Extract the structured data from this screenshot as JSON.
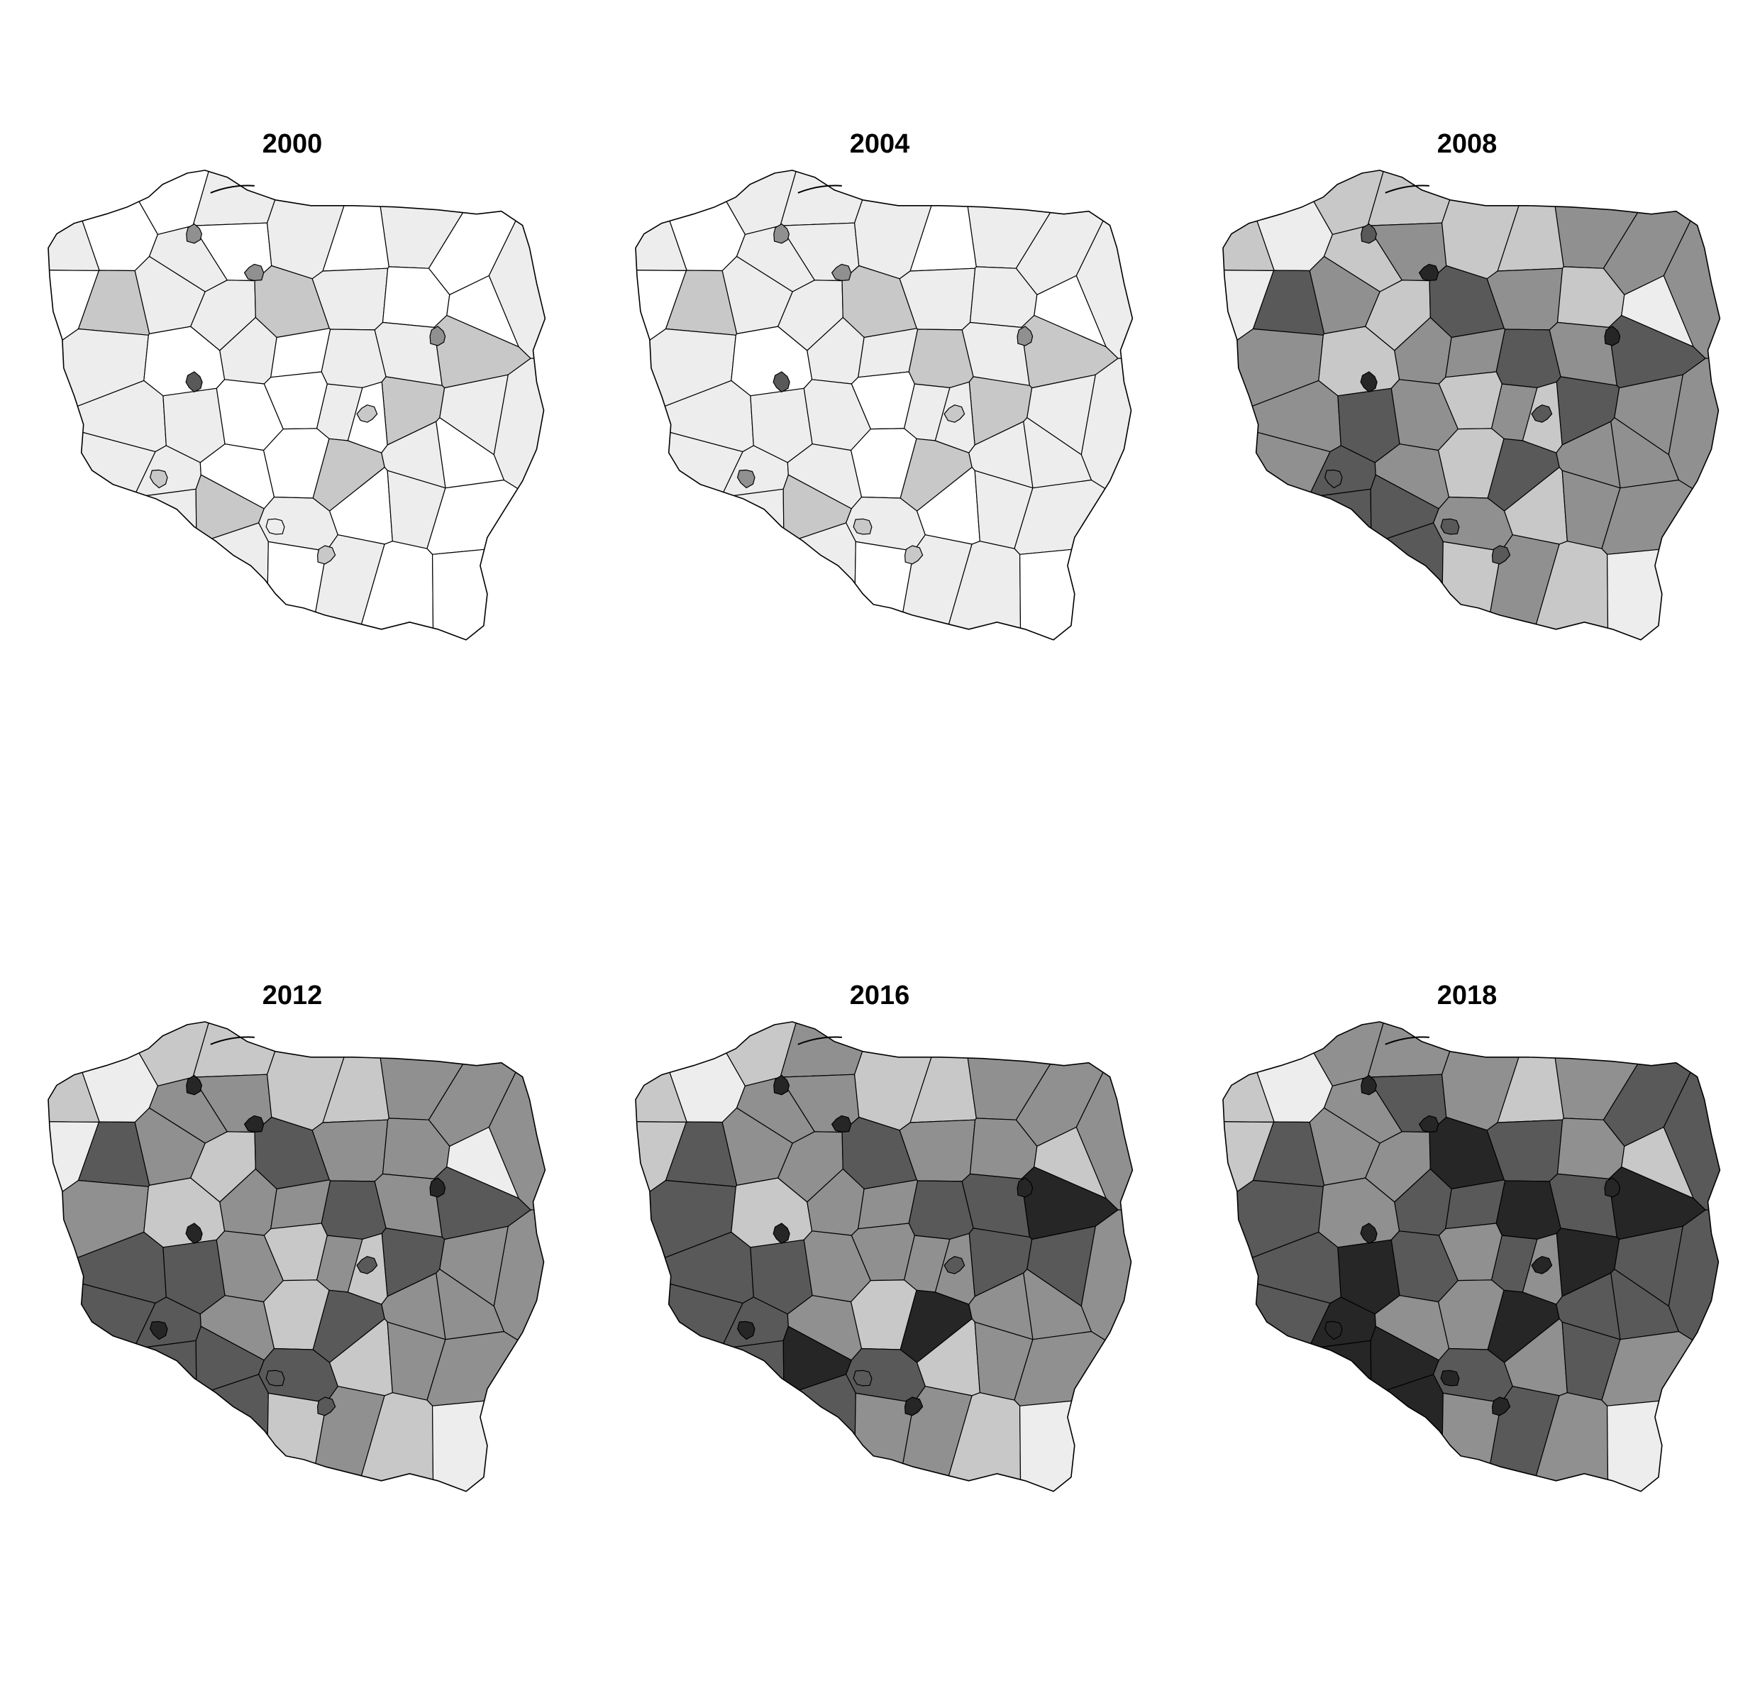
{
  "figure": {
    "panels": [
      {
        "title": "2000",
        "levels": [
          0,
          1,
          1,
          0,
          1,
          0,
          1,
          0,
          1,
          0,
          0,
          2,
          1,
          1,
          2,
          1,
          0,
          0,
          1,
          1,
          0,
          1,
          0,
          1,
          1,
          2,
          1,
          1,
          0,
          0,
          1,
          2,
          1,
          1,
          1,
          1,
          0,
          0,
          2,
          1,
          0,
          1,
          2,
          1,
          0,
          1,
          0,
          1,
          0,
          1,
          0,
          0,
          0
        ],
        "cities": [
          3,
          3,
          4,
          2,
          2,
          2,
          1,
          3
        ]
      },
      {
        "title": "2004",
        "levels": [
          1,
          1,
          1,
          0,
          1,
          1,
          1,
          0,
          1,
          1,
          0,
          2,
          1,
          1,
          2,
          1,
          1,
          0,
          1,
          1,
          0,
          1,
          1,
          2,
          1,
          2,
          1,
          1,
          1,
          0,
          1,
          2,
          1,
          1,
          1,
          1,
          1,
          0,
          2,
          1,
          1,
          1,
          2,
          1,
          0,
          1,
          1,
          1,
          0,
          1,
          1,
          0,
          1
        ],
        "cities": [
          3,
          3,
          4,
          2,
          3,
          2,
          2,
          3
        ]
      },
      {
        "title": "2008",
        "levels": [
          2,
          2,
          2,
          1,
          2,
          3,
          2,
          2,
          3,
          3,
          1,
          4,
          3,
          2,
          4,
          3,
          2,
          1,
          3,
          3,
          2,
          3,
          3,
          4,
          3,
          4,
          3,
          4,
          3,
          2,
          3,
          4,
          3,
          3,
          3,
          4,
          3,
          2,
          4,
          3,
          3,
          4,
          4,
          3,
          2,
          3,
          3,
          4,
          2,
          3,
          2,
          1,
          2
        ],
        "cities": [
          5,
          5,
          5,
          4,
          4,
          4,
          4,
          4
        ]
      },
      {
        "title": "2012",
        "levels": [
          2,
          2,
          2,
          1,
          3,
          3,
          2,
          2,
          3,
          3,
          1,
          4,
          3,
          2,
          4,
          3,
          3,
          1,
          3,
          3,
          2,
          3,
          3,
          4,
          3,
          4,
          4,
          4,
          3,
          2,
          3,
          4,
          3,
          3,
          4,
          4,
          3,
          2,
          4,
          3,
          3,
          4,
          4,
          4,
          2,
          3,
          3,
          4,
          2,
          3,
          2,
          1,
          2
        ],
        "cities": [
          5,
          5,
          5,
          4,
          5,
          4,
          4,
          5
        ]
      },
      {
        "title": "2016",
        "levels": [
          2,
          3,
          2,
          1,
          3,
          3,
          2,
          2,
          3,
          3,
          2,
          4,
          3,
          3,
          4,
          3,
          3,
          2,
          3,
          4,
          2,
          3,
          3,
          4,
          4,
          5,
          4,
          4,
          3,
          3,
          3,
          4,
          4,
          3,
          4,
          4,
          3,
          2,
          5,
          3,
          3,
          4,
          5,
          4,
          2,
          3,
          3,
          4,
          3,
          3,
          2,
          1,
          3
        ],
        "cities": [
          5,
          5,
          5,
          4,
          5,
          5,
          4,
          5
        ]
      },
      {
        "title": "2018",
        "levels": [
          3,
          3,
          2,
          1,
          3,
          4,
          3,
          2,
          3,
          4,
          2,
          4,
          3,
          3,
          5,
          4,
          3,
          2,
          4,
          4,
          3,
          4,
          4,
          5,
          4,
          5,
          4,
          5,
          4,
          3,
          4,
          5,
          4,
          4,
          4,
          5,
          3,
          3,
          5,
          4,
          4,
          5,
          5,
          4,
          3,
          4,
          3,
          5,
          3,
          4,
          3,
          1,
          3
        ],
        "cities": [
          5,
          5,
          5,
          5,
          5,
          5,
          5,
          5
        ]
      }
    ],
    "grey_scale": [
      "#ffffff",
      "#ededed",
      "#c8c8c8",
      "#909090",
      "#595959",
      "#262626"
    ]
  }
}
